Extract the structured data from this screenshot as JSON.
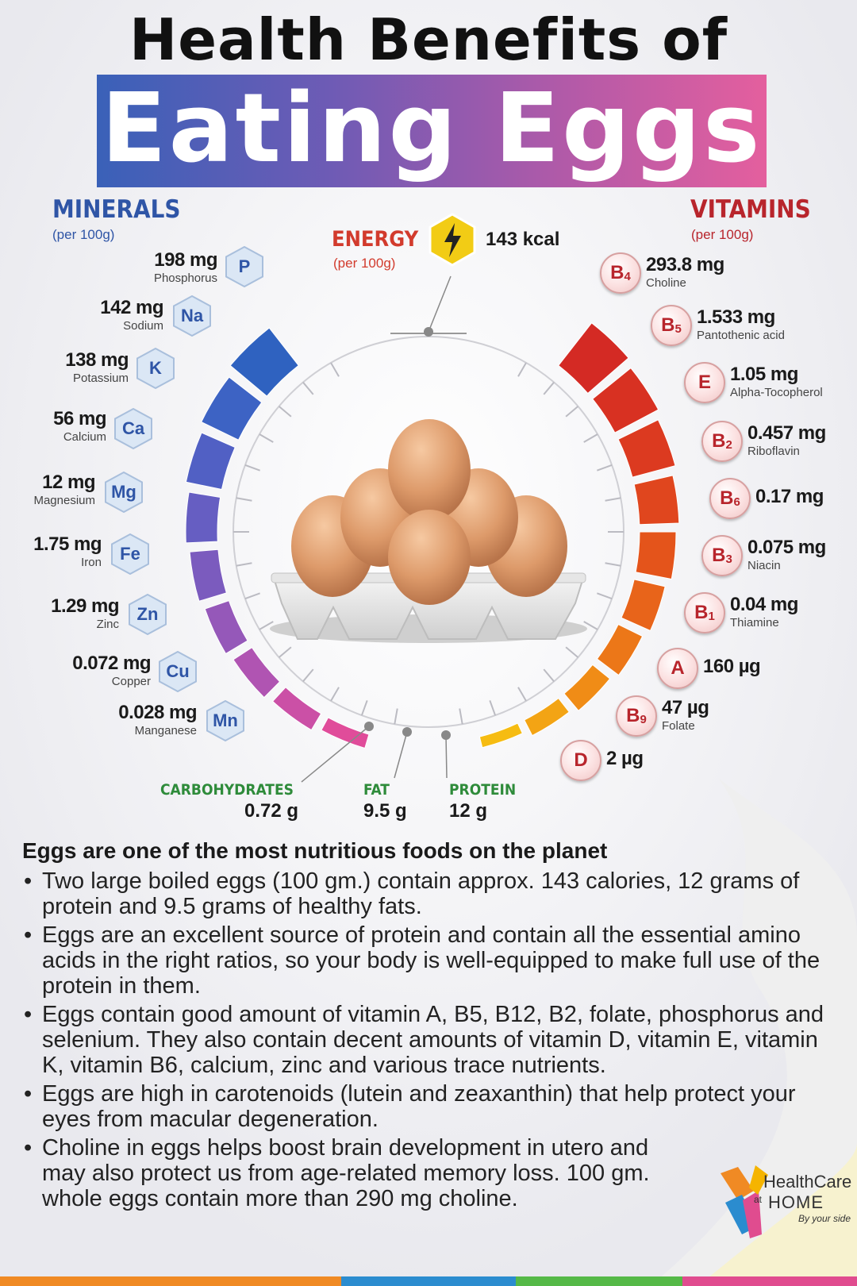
{
  "header": {
    "line1": "Health Benefits of",
    "line2": "Eating Eggs"
  },
  "minerals": {
    "heading": "MINERALS",
    "sub": "(per 100g)",
    "items": [
      {
        "value": "198 mg",
        "name": "Phosphorus",
        "symbol": "P"
      },
      {
        "value": "142 mg",
        "name": "Sodium",
        "symbol": "Na"
      },
      {
        "value": "138 mg",
        "name": "Potassium",
        "symbol": "K"
      },
      {
        "value": "56 mg",
        "name": "Calcium",
        "symbol": "Ca"
      },
      {
        "value": "12 mg",
        "name": "Magnesium",
        "symbol": "Mg"
      },
      {
        "value": "1.75 mg",
        "name": "Iron",
        "symbol": "Fe"
      },
      {
        "value": "1.29 mg",
        "name": "Zinc",
        "symbol": "Zn"
      },
      {
        "value": "0.072 mg",
        "name": "Copper",
        "symbol": "Cu"
      },
      {
        "value": "0.028 mg",
        "name": "Manganese",
        "symbol": "Mn"
      }
    ]
  },
  "vitamins": {
    "heading": "VITAMINS",
    "sub": "(per 100g)",
    "items": [
      {
        "letter": "B",
        "sub": "4",
        "value": "293.8 mg",
        "name": "Choline"
      },
      {
        "letter": "B",
        "sub": "5",
        "value": "1.533 mg",
        "name": "Pantothenic acid"
      },
      {
        "letter": "E",
        "sub": "",
        "value": "1.05 mg",
        "name": "Alpha-Tocopherol"
      },
      {
        "letter": "B",
        "sub": "2",
        "value": "0.457 mg",
        "name": "Riboflavin"
      },
      {
        "letter": "B",
        "sub": "6",
        "value": "0.17 mg",
        "name": ""
      },
      {
        "letter": "B",
        "sub": "3",
        "value": "0.075 mg",
        "name": "Niacin"
      },
      {
        "letter": "B",
        "sub": "1",
        "value": "0.04 mg",
        "name": "Thiamine"
      },
      {
        "letter": "A",
        "sub": "",
        "value": "160 µg",
        "name": ""
      },
      {
        "letter": "B",
        "sub": "9",
        "value": "47 µg",
        "name": "Folate"
      },
      {
        "letter": "D",
        "sub": "",
        "value": "2 µg",
        "name": ""
      }
    ]
  },
  "energy": {
    "heading": "ENERGY",
    "sub": "(per 100g)",
    "value": "143 kcal"
  },
  "macros": [
    {
      "label": "CARBOHYDRATES",
      "value": "0.72 g"
    },
    {
      "label": "FAT",
      "value": "9.5 g"
    },
    {
      "label": "PROTEIN",
      "value": "12 g"
    }
  ],
  "text": {
    "heading": "Eggs are one of the most nutritious foods on the planet",
    "bullets": [
      "Two large boiled eggs (100 gm.) contain approx. 143 calories, 12 grams of protein and 9.5 grams of healthy fats.",
      "Eggs are an excellent source of protein and contain all the essential amino acids in the right ratios, so your body is well-equipped to make full use of the protein in them.",
      "Eggs contain good amount of vitamin A, B5, B12, B2, folate, phosphorus and selenium. They also contain decent amounts of vitamin D, vitamin E, vitamin K, vitamin B6, calcium, zinc and various trace nutrients.",
      "Eggs are high in carotenoids (lutein and zeaxanthin) that help protect your eyes from macular degeneration.",
      "Choline in eggs helps boost brain development in utero and may also protect us from age-related memory loss. 100 gm. whole eggs contain more than 290 mg choline."
    ]
  },
  "logo": {
    "line1": "HealthCare",
    "at": "at",
    "line2": "HOME",
    "tagline": "By your side"
  },
  "colors": {
    "mineral": "#2f55a6",
    "vitamin": "#b8252c",
    "macro": "#2e8b3a",
    "banner_start": "#3a61b8",
    "banner_end": "#e45f9e"
  }
}
